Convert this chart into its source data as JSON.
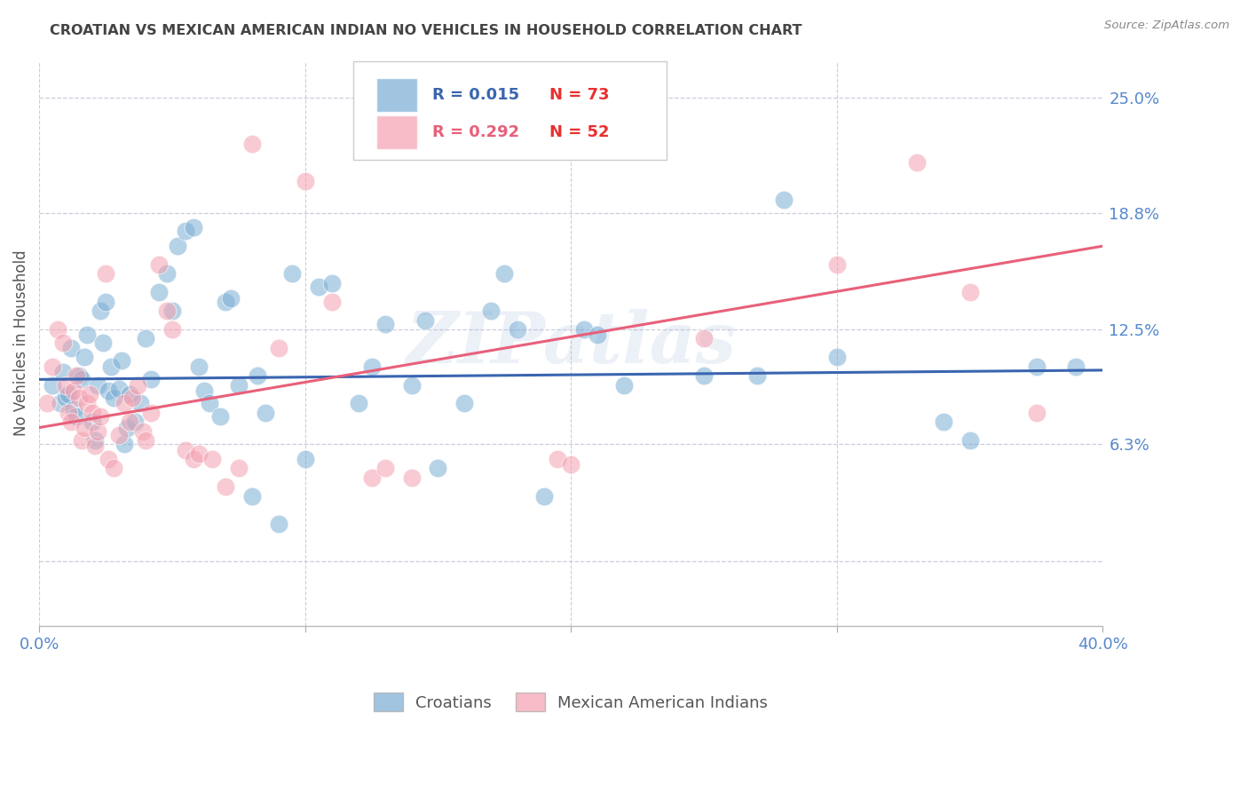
{
  "title": "CROATIAN VS MEXICAN AMERICAN INDIAN NO VEHICLES IN HOUSEHOLD CORRELATION CHART",
  "source": "Source: ZipAtlas.com",
  "ylabel": "No Vehicles in Household",
  "xmin": 0.0,
  "xmax": 40.0,
  "ymin": -3.5,
  "ymax": 27.0,
  "yticks": [
    0.0,
    6.3,
    12.5,
    18.8,
    25.0
  ],
  "ytick_labels": [
    "",
    "6.3%",
    "12.5%",
    "18.8%",
    "25.0%"
  ],
  "legend_blue_R": "R = 0.015",
  "legend_blue_N": "N = 73",
  "legend_pink_R": "R = 0.292",
  "legend_pink_N": "N = 52",
  "legend_label_blue": "Croatians",
  "legend_label_pink": "Mexican American Indians",
  "blue_color": "#7AADD4",
  "pink_color": "#F4A0B0",
  "blue_line_color": "#3A65B0",
  "pink_line_color": "#E8607A",
  "blue_text_color": "#3A65B0",
  "pink_text_color": "#E8607A",
  "n_text_color": "#E83030",
  "watermark": "ZIPatlas",
  "title_color": "#444444",
  "right_axis_color": "#5588CC",
  "bottom_label_color": "#555555",
  "blue_dots": [
    [
      0.5,
      9.5
    ],
    [
      0.8,
      8.5
    ],
    [
      0.9,
      10.2
    ],
    [
      1.0,
      8.8
    ],
    [
      1.1,
      9.0
    ],
    [
      1.2,
      11.5
    ],
    [
      1.3,
      8.2
    ],
    [
      1.4,
      7.8
    ],
    [
      1.5,
      10.0
    ],
    [
      1.6,
      9.8
    ],
    [
      1.7,
      11.0
    ],
    [
      1.8,
      12.2
    ],
    [
      2.0,
      7.5
    ],
    [
      2.1,
      6.5
    ],
    [
      2.2,
      9.5
    ],
    [
      2.3,
      13.5
    ],
    [
      2.4,
      11.8
    ],
    [
      2.5,
      14.0
    ],
    [
      2.6,
      9.2
    ],
    [
      2.7,
      10.5
    ],
    [
      2.8,
      8.8
    ],
    [
      3.0,
      9.3
    ],
    [
      3.1,
      10.8
    ],
    [
      3.2,
      6.3
    ],
    [
      3.3,
      7.2
    ],
    [
      3.4,
      9.0
    ],
    [
      3.6,
      7.5
    ],
    [
      3.8,
      8.5
    ],
    [
      4.0,
      12.0
    ],
    [
      4.2,
      9.8
    ],
    [
      4.5,
      14.5
    ],
    [
      4.8,
      15.5
    ],
    [
      5.0,
      13.5
    ],
    [
      5.2,
      17.0
    ],
    [
      5.5,
      17.8
    ],
    [
      5.8,
      18.0
    ],
    [
      6.0,
      10.5
    ],
    [
      6.2,
      9.2
    ],
    [
      6.4,
      8.5
    ],
    [
      6.8,
      7.8
    ],
    [
      7.0,
      14.0
    ],
    [
      7.2,
      14.2
    ],
    [
      7.5,
      9.5
    ],
    [
      8.0,
      3.5
    ],
    [
      8.2,
      10.0
    ],
    [
      8.5,
      8.0
    ],
    [
      9.0,
      2.0
    ],
    [
      9.5,
      15.5
    ],
    [
      10.0,
      5.5
    ],
    [
      10.5,
      14.8
    ],
    [
      11.0,
      15.0
    ],
    [
      12.0,
      8.5
    ],
    [
      12.5,
      10.5
    ],
    [
      13.0,
      12.8
    ],
    [
      14.0,
      9.5
    ],
    [
      14.5,
      13.0
    ],
    [
      15.0,
      5.0
    ],
    [
      16.0,
      8.5
    ],
    [
      17.0,
      13.5
    ],
    [
      17.5,
      15.5
    ],
    [
      18.0,
      12.5
    ],
    [
      19.0,
      3.5
    ],
    [
      20.5,
      12.5
    ],
    [
      21.0,
      12.2
    ],
    [
      22.0,
      9.5
    ],
    [
      25.0,
      10.0
    ],
    [
      27.0,
      10.0
    ],
    [
      28.0,
      19.5
    ],
    [
      30.0,
      11.0
    ],
    [
      34.0,
      7.5
    ],
    [
      35.0,
      6.5
    ],
    [
      37.5,
      10.5
    ],
    [
      39.0,
      10.5
    ]
  ],
  "pink_dots": [
    [
      0.3,
      8.5
    ],
    [
      0.5,
      10.5
    ],
    [
      0.7,
      12.5
    ],
    [
      0.9,
      11.8
    ],
    [
      1.0,
      9.5
    ],
    [
      1.1,
      8.0
    ],
    [
      1.2,
      7.5
    ],
    [
      1.3,
      9.2
    ],
    [
      1.4,
      10.0
    ],
    [
      1.5,
      8.8
    ],
    [
      1.6,
      6.5
    ],
    [
      1.7,
      7.2
    ],
    [
      1.8,
      8.5
    ],
    [
      1.9,
      9.0
    ],
    [
      2.0,
      8.0
    ],
    [
      2.1,
      6.2
    ],
    [
      2.2,
      7.0
    ],
    [
      2.3,
      7.8
    ],
    [
      2.5,
      15.5
    ],
    [
      2.6,
      5.5
    ],
    [
      2.8,
      5.0
    ],
    [
      3.0,
      6.8
    ],
    [
      3.2,
      8.5
    ],
    [
      3.4,
      7.5
    ],
    [
      3.5,
      8.8
    ],
    [
      3.7,
      9.5
    ],
    [
      3.9,
      7.0
    ],
    [
      4.0,
      6.5
    ],
    [
      4.2,
      8.0
    ],
    [
      4.5,
      16.0
    ],
    [
      4.8,
      13.5
    ],
    [
      5.0,
      12.5
    ],
    [
      5.5,
      6.0
    ],
    [
      5.8,
      5.5
    ],
    [
      6.0,
      5.8
    ],
    [
      6.5,
      5.5
    ],
    [
      7.0,
      4.0
    ],
    [
      7.5,
      5.0
    ],
    [
      8.0,
      22.5
    ],
    [
      9.0,
      11.5
    ],
    [
      10.0,
      20.5
    ],
    [
      11.0,
      14.0
    ],
    [
      12.5,
      4.5
    ],
    [
      13.0,
      5.0
    ],
    [
      14.0,
      4.5
    ],
    [
      19.5,
      5.5
    ],
    [
      20.0,
      5.2
    ],
    [
      25.0,
      12.0
    ],
    [
      30.0,
      16.0
    ],
    [
      33.0,
      21.5
    ],
    [
      35.0,
      14.5
    ],
    [
      37.5,
      8.0
    ]
  ],
  "blue_line_x": [
    0.0,
    40.0
  ],
  "blue_line_y": [
    9.8,
    10.3
  ],
  "pink_line_x": [
    0.0,
    40.0
  ],
  "pink_line_y": [
    7.2,
    17.0
  ],
  "grid_color": "#CCCCDD",
  "background_color": "#FFFFFF"
}
